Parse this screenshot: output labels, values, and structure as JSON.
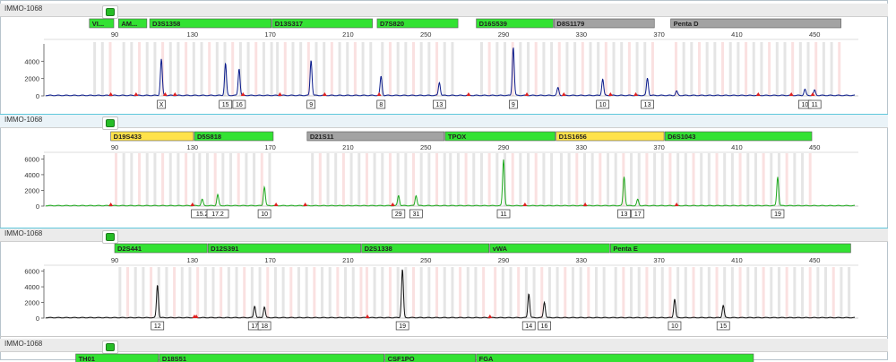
{
  "colors": {
    "blue": "#0b1c8c",
    "green": "#1eaa1e",
    "black": "#111111",
    "locus_green": "#33e233",
    "locus_yellow": "#ffe24a",
    "locus_gray": "#a3a3a3",
    "bin_gray": "#dedede",
    "bin_pink": "#f9d9d9",
    "marker_red": "#e02020"
  },
  "scale_ticks": [
    90,
    130,
    170,
    210,
    250,
    290,
    330,
    370,
    410,
    450
  ],
  "panels": [
    {
      "sample": "IMMO-1068",
      "dye": "blue",
      "ymax": 6000,
      "yticks": [
        0,
        2000,
        4000
      ],
      "loci": [
        {
          "name": "VI...",
          "start": 77,
          "end": 90,
          "color": "green"
        },
        {
          "name": "AM...",
          "start": 92,
          "end": 107,
          "color": "green"
        },
        {
          "name": "D3S1358",
          "start": 108,
          "end": 171,
          "color": "green"
        },
        {
          "name": "D13S317",
          "start": 171,
          "end": 223,
          "color": "green"
        },
        {
          "name": "D7S820",
          "start": 225,
          "end": 267,
          "color": "green"
        },
        {
          "name": "D16S539",
          "start": 276,
          "end": 316,
          "color": "green"
        },
        {
          "name": "D8S1179",
          "start": 316,
          "end": 368,
          "color": "gray"
        },
        {
          "name": "Penta D",
          "start": 376,
          "end": 464,
          "color": "gray"
        }
      ],
      "peaks": [
        {
          "bp": 114,
          "h": 4200,
          "label": "X"
        },
        {
          "bp": 147,
          "h": 3700,
          "label": "15"
        },
        {
          "bp": 154,
          "h": 3100,
          "label": "16"
        },
        {
          "bp": 191,
          "h": 4100,
          "label": "9"
        },
        {
          "bp": 227,
          "h": 2200,
          "label": "8"
        },
        {
          "bp": 257,
          "h": 1500,
          "label": "13"
        },
        {
          "bp": 295,
          "h": 5600,
          "label": "9"
        },
        {
          "bp": 318,
          "h": 900,
          "label": ""
        },
        {
          "bp": 341,
          "h": 1900,
          "label": "10"
        },
        {
          "bp": 364,
          "h": 2000,
          "label": "13"
        },
        {
          "bp": 379,
          "h": 500,
          "label": ""
        },
        {
          "bp": 445,
          "h": 700,
          "label": "10"
        },
        {
          "bp": 450,
          "h": 600,
          "label": "11"
        }
      ],
      "markers_bp": [
        88,
        101,
        116,
        121,
        156,
        175,
        198,
        226,
        272,
        302,
        321,
        345,
        358,
        421,
        438,
        449
      ]
    },
    {
      "sample": "IMMO-1068",
      "dye": "green",
      "ymax": 6500,
      "yticks": [
        0,
        2000,
        4000,
        6000
      ],
      "loci": [
        {
          "name": "D19S433",
          "start": 88,
          "end": 131,
          "color": "yellow"
        },
        {
          "name": "D5S818",
          "start": 131,
          "end": 172,
          "color": "green"
        },
        {
          "name": "D21S11",
          "start": 189,
          "end": 260,
          "color": "gray"
        },
        {
          "name": "TPOX",
          "start": 260,
          "end": 317,
          "color": "green"
        },
        {
          "name": "D1S1656",
          "start": 317,
          "end": 373,
          "color": "yellow"
        },
        {
          "name": "D6S1043",
          "start": 373,
          "end": 449,
          "color": "green"
        }
      ],
      "peaks": [
        {
          "bp": 135,
          "h": 800,
          "label": "15.2"
        },
        {
          "bp": 143,
          "h": 1400,
          "label": "17.2"
        },
        {
          "bp": 167,
          "h": 2400,
          "label": "10"
        },
        {
          "bp": 236,
          "h": 1300,
          "label": "29"
        },
        {
          "bp": 245,
          "h": 1300,
          "label": "31"
        },
        {
          "bp": 290,
          "h": 5900,
          "label": "11"
        },
        {
          "bp": 352,
          "h": 3700,
          "label": "13"
        },
        {
          "bp": 359,
          "h": 800,
          "label": "17"
        },
        {
          "bp": 431,
          "h": 3700,
          "label": "19"
        }
      ],
      "markers_bp": [
        88,
        130,
        173,
        188,
        233,
        301,
        332,
        379
      ]
    },
    {
      "sample": "IMMO-1068",
      "dye": "black",
      "ymax": 6300,
      "yticks": [
        0,
        2000,
        4000,
        6000
      ],
      "loci": [
        {
          "name": "D2S441",
          "start": 90,
          "end": 138,
          "color": "green"
        },
        {
          "name": "D12S391",
          "start": 138,
          "end": 217,
          "color": "green"
        },
        {
          "name": "D2S1338",
          "start": 217,
          "end": 283,
          "color": "green"
        },
        {
          "name": "vWA",
          "start": 283,
          "end": 345,
          "color": "green"
        },
        {
          "name": "Penta E",
          "start": 345,
          "end": 469,
          "color": "green"
        }
      ],
      "peaks": [
        {
          "bp": 112,
          "h": 4200,
          "label": "12"
        },
        {
          "bp": 162,
          "h": 1500,
          "label": "17"
        },
        {
          "bp": 167,
          "h": 1400,
          "label": "18"
        },
        {
          "bp": 238,
          "h": 6200,
          "label": "19"
        },
        {
          "bp": 303,
          "h": 3100,
          "label": "14"
        },
        {
          "bp": 311,
          "h": 2000,
          "label": "16"
        },
        {
          "bp": 378,
          "h": 2400,
          "label": "10"
        },
        {
          "bp": 403,
          "h": 1600,
          "label": "15"
        }
      ],
      "markers_bp": [
        131,
        132,
        220,
        283
      ]
    },
    {
      "sample": "IMMO-1068",
      "dye": "none",
      "loci": [
        {
          "name": "TH01",
          "start": 70,
          "end": 113,
          "color": "green"
        },
        {
          "name": "D18S51",
          "start": 113,
          "end": 229,
          "color": "green"
        },
        {
          "name": "CSF1PO",
          "start": 229,
          "end": 276,
          "color": "green"
        },
        {
          "name": "FGA",
          "start": 276,
          "end": 419,
          "color": "green"
        }
      ]
    }
  ]
}
